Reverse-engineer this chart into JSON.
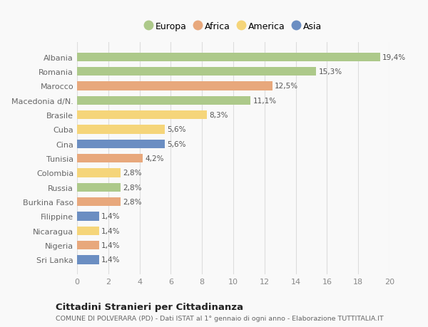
{
  "countries": [
    "Albania",
    "Romania",
    "Marocco",
    "Macedonia d/N.",
    "Brasile",
    "Cuba",
    "Cina",
    "Tunisia",
    "Colombia",
    "Russia",
    "Burkina Faso",
    "Filippine",
    "Nicaragua",
    "Nigeria",
    "Sri Lanka"
  ],
  "values": [
    19.4,
    15.3,
    12.5,
    11.1,
    8.3,
    5.6,
    5.6,
    4.2,
    2.8,
    2.8,
    2.8,
    1.4,
    1.4,
    1.4,
    1.4
  ],
  "labels": [
    "19,4%",
    "15,3%",
    "12,5%",
    "11,1%",
    "8,3%",
    "5,6%",
    "5,6%",
    "4,2%",
    "2,8%",
    "2,8%",
    "2,8%",
    "1,4%",
    "1,4%",
    "1,4%",
    "1,4%"
  ],
  "continents": [
    "Europa",
    "Europa",
    "Africa",
    "Europa",
    "America",
    "America",
    "Asia",
    "Africa",
    "America",
    "Europa",
    "Africa",
    "Asia",
    "America",
    "Africa",
    "Asia"
  ],
  "colors": {
    "Europa": "#adc98a",
    "Africa": "#e8a87c",
    "America": "#f5d57a",
    "Asia": "#6b8ec2"
  },
  "xlim": [
    0,
    20
  ],
  "xticks": [
    0,
    2,
    4,
    6,
    8,
    10,
    12,
    14,
    16,
    18,
    20
  ],
  "title": "Cittadini Stranieri per Cittadinanza",
  "subtitle": "COMUNE DI POLVERARA (PD) - Dati ISTAT al 1° gennaio di ogni anno - Elaborazione TUTTITALIA.IT",
  "background_color": "#f9f9f9",
  "grid_color": "#dddddd",
  "bar_height": 0.6
}
